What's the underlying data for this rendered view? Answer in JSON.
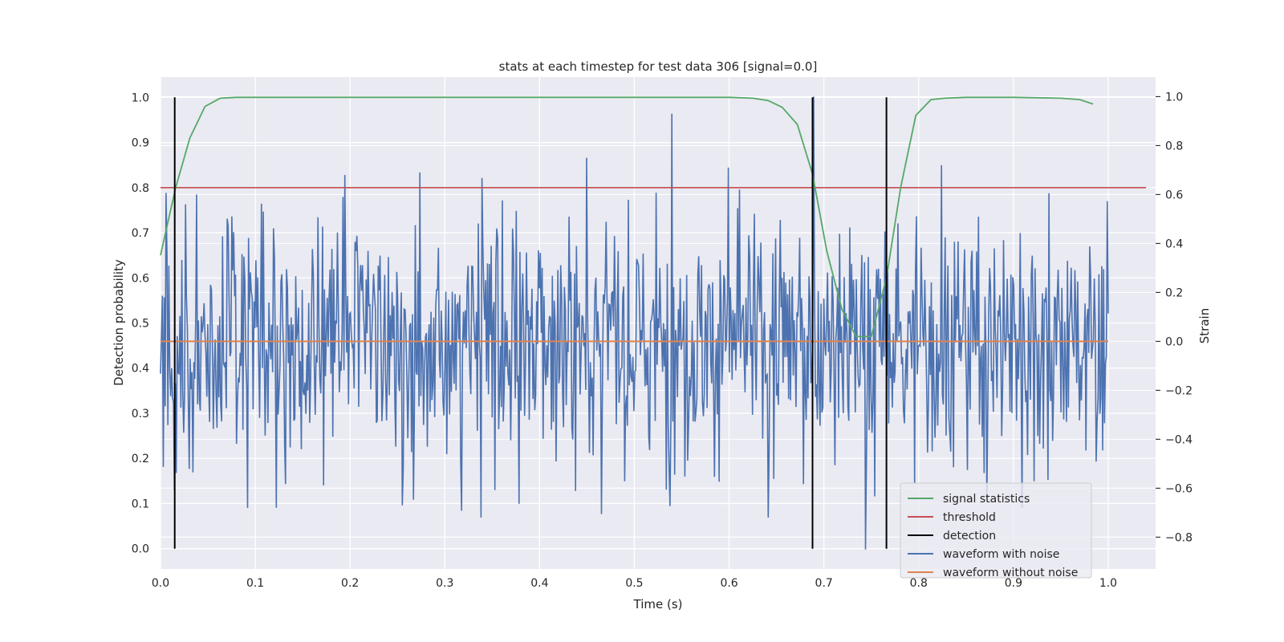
{
  "chart_data": {
    "type": "line",
    "title": "stats at each timestep for test data 306 [signal=0.0]",
    "xlabel": "Time (s)",
    "ylabel_left": "Detection probability",
    "ylabel_right": "Strain",
    "xlim": [
      0.0,
      1.05
    ],
    "ylim_left": [
      -0.045,
      1.045
    ],
    "ylim_right": [
      -0.93,
      1.08
    ],
    "x_ticks": [
      "0.0",
      "0.1",
      "0.2",
      "0.3",
      "0.4",
      "0.5",
      "0.6",
      "0.7",
      "0.8",
      "0.9",
      "1.0"
    ],
    "y_left_ticks": [
      "0.0",
      "0.1",
      "0.2",
      "0.3",
      "0.4",
      "0.5",
      "0.6",
      "0.7",
      "0.8",
      "0.9",
      "1.0"
    ],
    "y_right_ticks": [
      "−0.8",
      "−0.6",
      "−0.4",
      "−0.2",
      "0.0",
      "0.2",
      "0.4",
      "0.6",
      "0.8",
      "1.0"
    ],
    "grid": true,
    "legend_position": "bottom-right",
    "series": [
      {
        "name": "signal statistics",
        "axis": "left",
        "color": "#55a868",
        "x": [
          0.0,
          0.016,
          0.031,
          0.047,
          0.063,
          0.08,
          0.1,
          0.2,
          0.3,
          0.4,
          0.5,
          0.6,
          0.625,
          0.641,
          0.656,
          0.672,
          0.688,
          0.703,
          0.719,
          0.734,
          0.75,
          0.766,
          0.781,
          0.797,
          0.813,
          0.828,
          0.85,
          0.9,
          0.95,
          0.97,
          0.984
        ],
        "y": [
          0.65,
          0.8,
          0.91,
          0.98,
          0.998,
          1.0,
          1.0,
          1.0,
          1.0,
          1.0,
          1.0,
          1.0,
          0.998,
          0.993,
          0.978,
          0.94,
          0.83,
          0.66,
          0.53,
          0.47,
          0.47,
          0.6,
          0.8,
          0.96,
          0.995,
          0.998,
          1.0,
          1.0,
          0.998,
          0.995,
          0.985
        ]
      },
      {
        "name": "threshold",
        "axis": "left",
        "color": "#c44e52",
        "x": [
          0.0,
          1.04
        ],
        "y": [
          0.8,
          0.8
        ]
      },
      {
        "name": "detection",
        "axis": "left",
        "color": "#000000",
        "x": [
          0.015,
          0.688,
          0.766
        ],
        "y_range": [
          0.0,
          1.0
        ]
      },
      {
        "name": "waveform with noise",
        "axis": "right",
        "color": "#4c72b0",
        "x_range": [
          0.0,
          1.0
        ],
        "noise_amplitude": 0.25,
        "noise_min": -0.85,
        "noise_max": 1.0,
        "peaks": [
          {
            "x": 0.026,
            "y": 0.56
          },
          {
            "x": 0.038,
            "y": 0.6
          },
          {
            "x": 0.195,
            "y": 0.68
          },
          {
            "x": 0.274,
            "y": 0.69
          },
          {
            "x": 0.45,
            "y": 0.75
          },
          {
            "x": 0.54,
            "y": 0.93
          },
          {
            "x": 0.599,
            "y": 0.71
          },
          {
            "x": 0.689,
            "y": 1.0
          },
          {
            "x": 0.824,
            "y": 0.72
          },
          {
            "x": 0.122,
            "y": -0.68
          },
          {
            "x": 0.338,
            "y": -0.72
          },
          {
            "x": 0.641,
            "y": -0.72
          },
          {
            "x": 0.744,
            "y": -0.85
          }
        ]
      },
      {
        "name": "waveform without noise",
        "axis": "right",
        "color": "#dd8452",
        "x": [
          0.0,
          1.0
        ],
        "y": [
          0.0,
          0.0
        ]
      }
    ]
  }
}
